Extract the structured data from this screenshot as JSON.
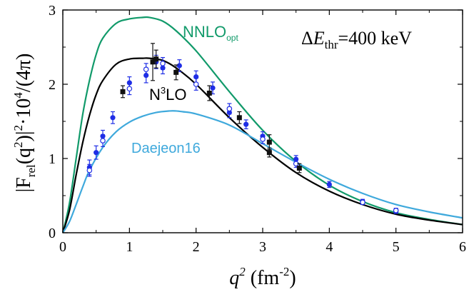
{
  "chart_data": {
    "type": "line",
    "title": "",
    "annotation": {
      "delta": "Δ",
      "var": "E",
      "sub": "thr",
      "value": "=400 keV"
    },
    "xlabel": {
      "var": "q",
      "sup": "2",
      "unit_open": " (fm",
      "unit_sup": "-2",
      "unit_close": ")"
    },
    "ylabel": {
      "a": "|F",
      "a_sub": "rel",
      "b": "(q",
      "b_sup": "2",
      "c": ")|",
      "c_sup": "2",
      "d": "·10",
      "d_sup": "4",
      "e": "/(4π)"
    },
    "xlim": [
      0,
      6
    ],
    "ylim": [
      0,
      3
    ],
    "xticks": [
      "0",
      "1",
      "2",
      "3",
      "4",
      "5",
      "6"
    ],
    "yticks": [
      "0",
      "1",
      "2",
      "3"
    ],
    "grid": false,
    "series": [
      {
        "name": "NNLO",
        "name_sub": "opt",
        "color": "#119a6a",
        "x": [
          0,
          0.1,
          0.2,
          0.3,
          0.4,
          0.5,
          0.6,
          0.8,
          1.0,
          1.2,
          1.3,
          1.5,
          1.7,
          2.0,
          2.5,
          3.0,
          3.5,
          4.0,
          4.5,
          5.0,
          5.5,
          6.0
        ],
        "y": [
          0,
          0.4,
          1.0,
          1.6,
          2.05,
          2.4,
          2.62,
          2.82,
          2.88,
          2.9,
          2.9,
          2.85,
          2.72,
          2.45,
          1.9,
          1.38,
          0.96,
          0.64,
          0.42,
          0.27,
          0.18,
          0.11
        ]
      },
      {
        "name": "N",
        "name_sup": "3",
        "name_tail": "LO",
        "color": "#000000",
        "x": [
          0,
          0.1,
          0.2,
          0.3,
          0.4,
          0.5,
          0.6,
          0.8,
          1.0,
          1.2,
          1.3,
          1.5,
          1.7,
          2.0,
          2.5,
          3.0,
          3.5,
          4.0,
          4.5,
          5.0,
          5.5,
          6.0
        ],
        "y": [
          0,
          0.3,
          0.78,
          1.22,
          1.58,
          1.86,
          2.05,
          2.27,
          2.34,
          2.35,
          2.35,
          2.32,
          2.22,
          2.0,
          1.55,
          1.15,
          0.81,
          0.56,
          0.38,
          0.25,
          0.17,
          0.11
        ]
      },
      {
        "name": "Daejeon16",
        "color": "#3fa9dc",
        "x": [
          0,
          0.1,
          0.2,
          0.3,
          0.4,
          0.6,
          0.8,
          1.0,
          1.2,
          1.4,
          1.6,
          1.7,
          1.8,
          2.0,
          2.5,
          3.0,
          3.5,
          4.0,
          4.5,
          5.0,
          5.5,
          6.0
        ],
        "y": [
          0,
          0.15,
          0.38,
          0.62,
          0.84,
          1.15,
          1.36,
          1.49,
          1.57,
          1.62,
          1.64,
          1.64,
          1.63,
          1.6,
          1.45,
          1.2,
          0.95,
          0.72,
          0.53,
          0.38,
          0.28,
          0.2
        ]
      }
    ],
    "data_sets": [
      {
        "marker": "filled-circle",
        "color": "#1f2ee6",
        "points": [
          [
            0.4,
            0.88,
            0.1
          ],
          [
            0.5,
            1.08,
            0.09
          ],
          [
            0.6,
            1.3,
            0.08
          ],
          [
            0.75,
            1.55,
            0.08
          ],
          [
            1.0,
            2.02,
            0.08
          ],
          [
            1.25,
            2.12,
            0.1
          ],
          [
            1.4,
            2.3,
            0.09
          ],
          [
            1.5,
            2.22,
            0.08
          ],
          [
            1.75,
            2.25,
            0.08
          ],
          [
            2.0,
            2.1,
            0.08
          ],
          [
            2.25,
            1.95,
            0.08
          ],
          [
            2.5,
            1.62,
            0.07
          ],
          [
            2.75,
            1.46,
            0.06
          ],
          [
            3.0,
            1.3,
            0.06
          ],
          [
            3.5,
            0.99,
            0.05
          ],
          [
            4.0,
            0.65,
            0.04
          ],
          [
            4.5,
            0.42,
            0.03
          ],
          [
            5.0,
            0.29,
            0.03
          ]
        ]
      },
      {
        "marker": "open-circle",
        "color": "#1f2ee6",
        "points": [
          [
            0.4,
            0.84,
            0.08
          ],
          [
            0.6,
            1.24,
            0.08
          ],
          [
            1.0,
            1.94,
            0.08
          ],
          [
            1.25,
            2.2,
            0.08
          ],
          [
            1.5,
            2.28,
            0.08
          ],
          [
            2.0,
            2.0,
            0.08
          ],
          [
            2.5,
            1.67,
            0.07
          ],
          [
            3.0,
            1.26,
            0.06
          ],
          [
            3.5,
            0.93,
            0.05
          ],
          [
            4.5,
            0.41,
            0.03
          ],
          [
            5.0,
            0.3,
            0.03
          ]
        ]
      },
      {
        "marker": "filled-square",
        "color": "#111111",
        "points": [
          [
            0.9,
            1.9,
            0.08
          ],
          [
            1.35,
            2.3,
            0.25
          ],
          [
            1.4,
            2.34,
            0.12
          ],
          [
            1.7,
            2.16,
            0.1
          ],
          [
            2.2,
            1.88,
            0.1
          ],
          [
            2.65,
            1.55,
            0.08
          ],
          [
            3.1,
            1.22,
            0.1
          ],
          [
            3.1,
            1.08,
            0.06
          ],
          [
            3.55,
            0.87,
            0.06
          ]
        ]
      }
    ]
  }
}
